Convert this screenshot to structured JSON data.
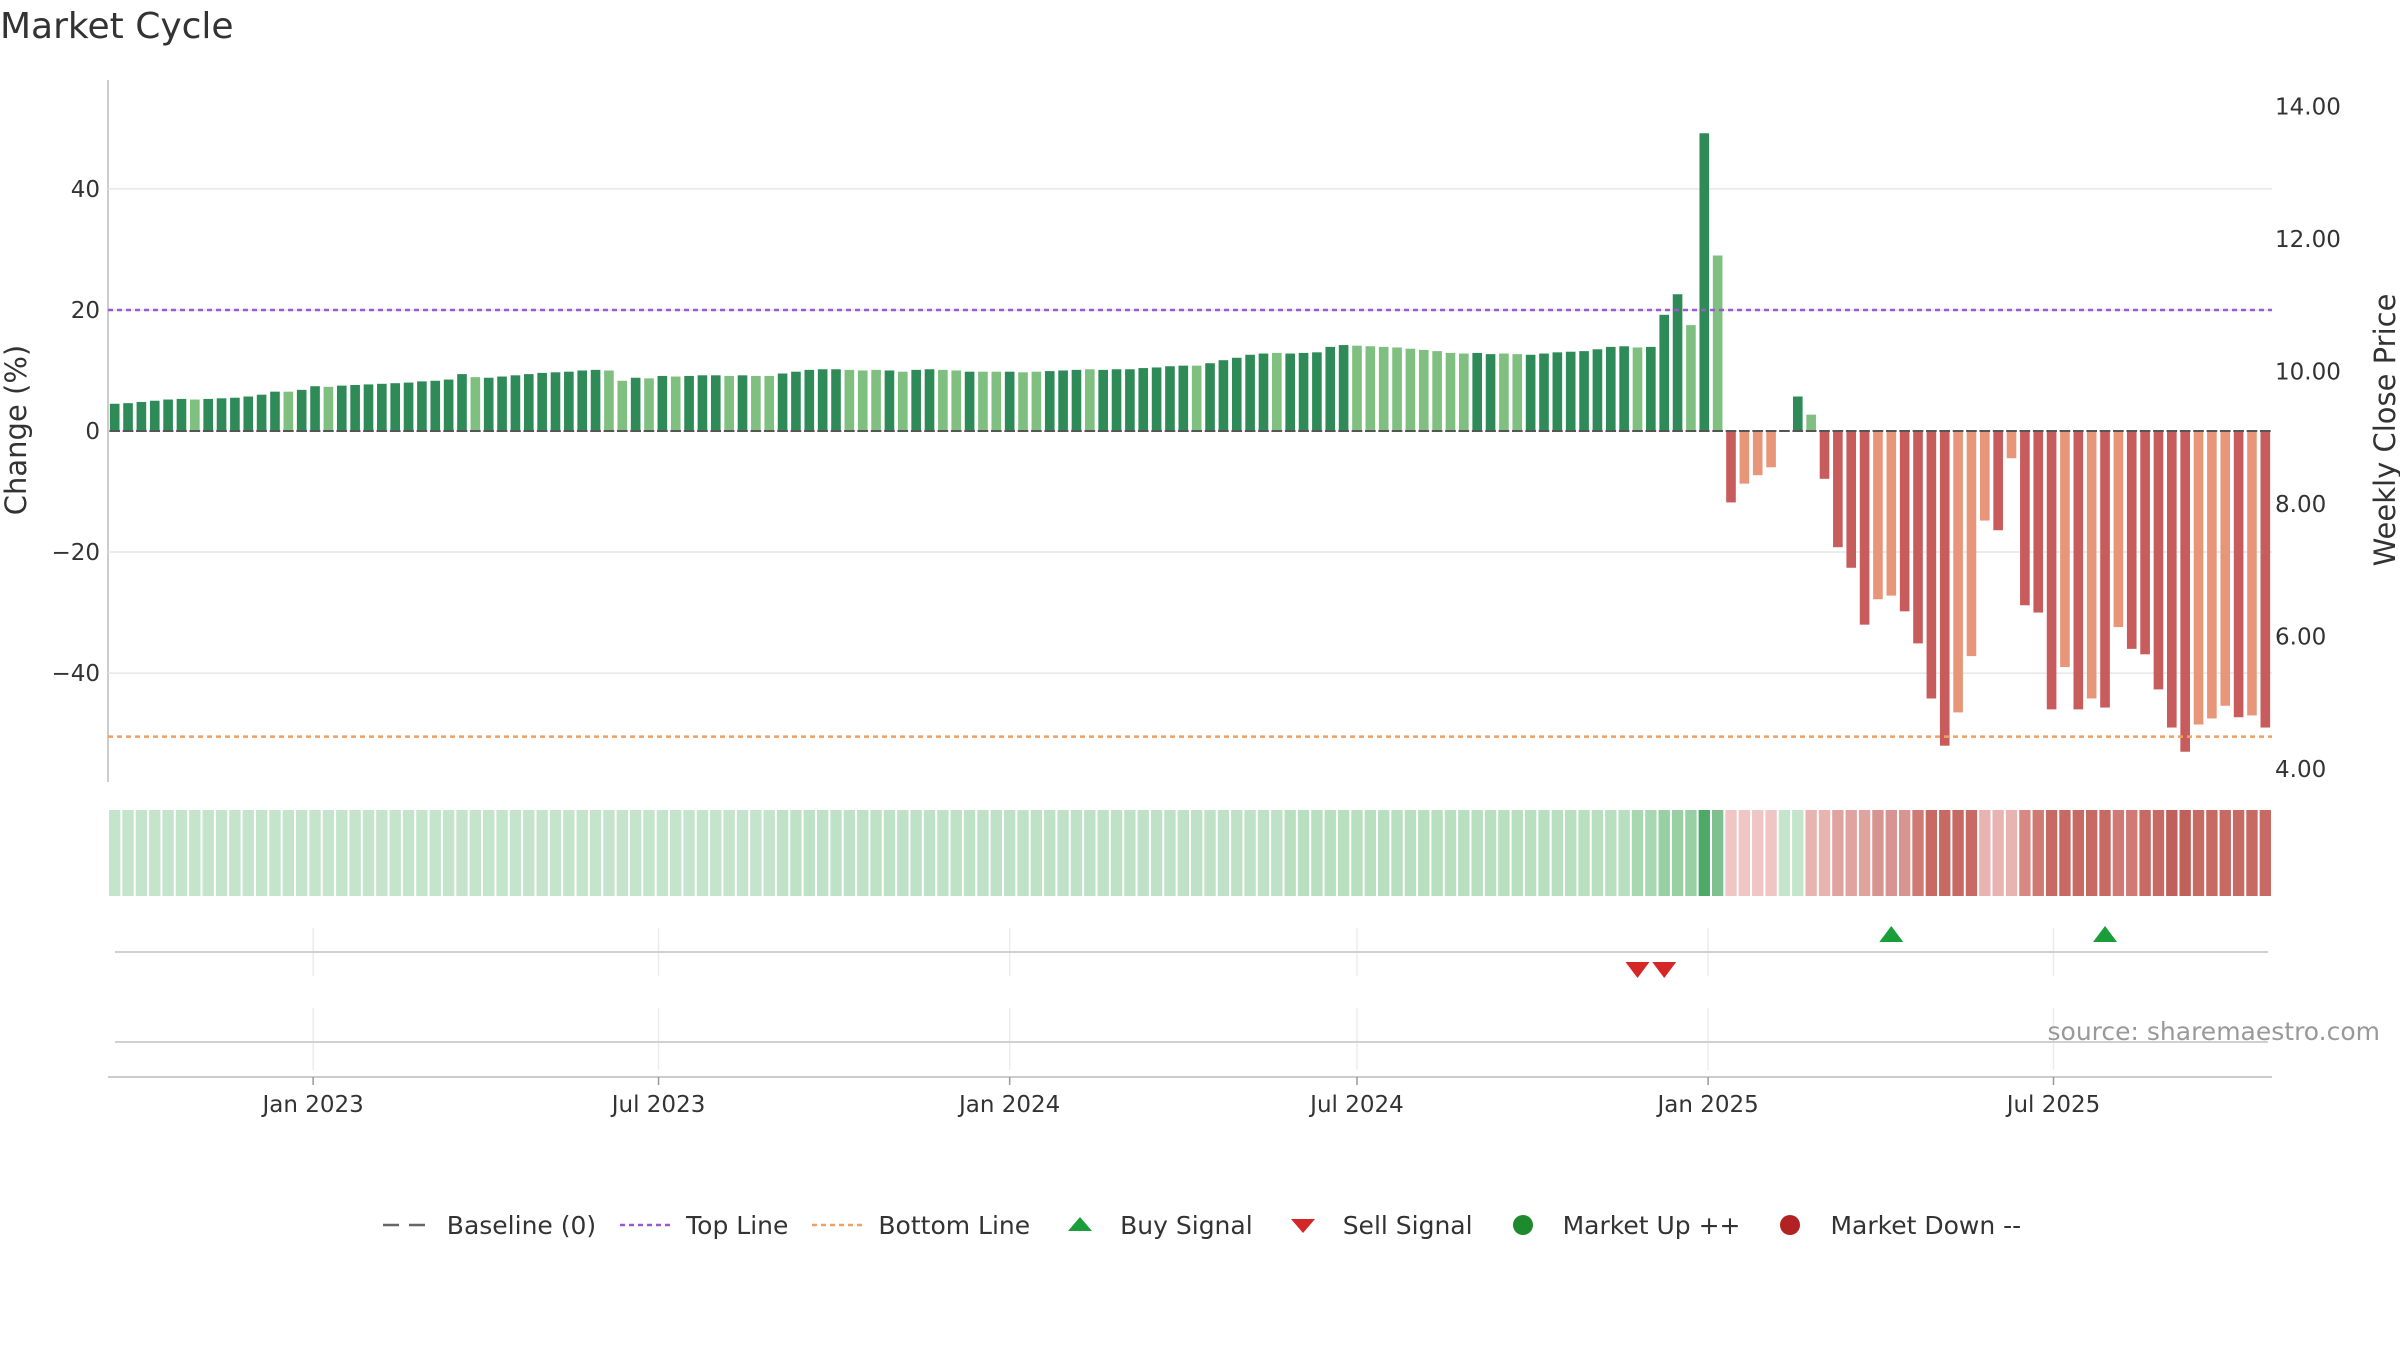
{
  "chart_data": {
    "type": "bar",
    "title": "Market Cycle",
    "ylabel_left": "Change (%)",
    "ylabel_right": "Weekly Close Price",
    "ylim_left": [
      -58,
      58
    ],
    "ylim_right": [
      3.8,
      14.4
    ],
    "yticks_left": [
      40,
      20,
      0,
      -20,
      -40
    ],
    "ytick_labels_left": [
      "40",
      "20",
      "0",
      "−20",
      "−40"
    ],
    "yticks_right": [
      "14.00",
      "12.00",
      "10.00",
      "8.00",
      "6.00",
      "4.00"
    ],
    "top_line": 20,
    "bottom_line": -50.5,
    "x_start": "2022-09-19",
    "week_days": 7,
    "xticks": [
      {
        "label": "Jan 2023",
        "date": "2023-01-01"
      },
      {
        "label": "Jul 2023",
        "date": "2023-07-01"
      },
      {
        "label": "Jan 2024",
        "date": "2024-01-01"
      },
      {
        "label": "Jul 2024",
        "date": "2024-07-01"
      },
      {
        "label": "Jan 2025",
        "date": "2025-01-01"
      },
      {
        "label": "Jul 2025",
        "date": "2025-07-01"
      }
    ],
    "values": [
      4.5,
      4.6,
      4.8,
      5.0,
      5.2,
      5.3,
      5.2,
      5.3,
      5.4,
      5.5,
      5.7,
      6.0,
      6.5,
      6.5,
      6.8,
      7.4,
      7.3,
      7.5,
      7.6,
      7.7,
      7.8,
      7.9,
      8.0,
      8.2,
      8.3,
      8.5,
      9.4,
      8.9,
      8.8,
      9.0,
      9.2,
      9.4,
      9.6,
      9.7,
      9.8,
      10.0,
      10.1,
      10.0,
      8.3,
      8.8,
      8.7,
      9.1,
      9.0,
      9.1,
      9.2,
      9.2,
      9.1,
      9.2,
      9.1,
      9.1,
      9.5,
      9.8,
      10.1,
      10.2,
      10.2,
      10.1,
      10.0,
      10.1,
      10.0,
      9.8,
      10.1,
      10.2,
      10.1,
      10.0,
      9.8,
      9.8,
      9.8,
      9.8,
      9.7,
      9.8,
      9.9,
      10.0,
      10.1,
      10.2,
      10.1,
      10.2,
      10.2,
      10.4,
      10.5,
      10.7,
      10.8,
      10.8,
      11.2,
      11.7,
      12.1,
      12.6,
      12.8,
      12.9,
      12.8,
      12.9,
      13.0,
      13.9,
      14.2,
      14.1,
      14.0,
      13.9,
      13.8,
      13.6,
      13.4,
      13.2,
      12.9,
      12.8,
      12.9,
      12.7,
      12.8,
      12.7,
      12.6,
      12.8,
      13.0,
      13.1,
      13.2,
      13.5,
      13.9,
      14.0,
      13.8,
      13.9,
      19.2,
      22.6,
      17.5,
      49.2,
      29.0,
      -11.8,
      -8.7,
      -7.3,
      -6.0,
      0,
      5.7,
      2.7,
      -7.9,
      -19.2,
      -22.6,
      -32.0,
      -27.8,
      -27.2,
      -29.8,
      -35.1,
      -44.2,
      -52.0,
      -46.5,
      -37.2,
      -14.8,
      -16.4,
      -4.5,
      -28.8,
      -30.0,
      -46.0,
      -39.0,
      -46.0,
      -44.2,
      -45.7,
      -32.4,
      -36.0,
      -36.9,
      -42.7,
      -49.0,
      -53.0,
      -48.5,
      -47.5,
      -45.4,
      -47.3,
      -47.0,
      -49.0
    ],
    "bar_colors": [
      "#2e8b57",
      "#2e8b57",
      "#2e8b57",
      "#2e8b57",
      "#2e8b57",
      "#2e8b57",
      "#7fbf7f",
      "#2e8b57",
      "#2e8b57",
      "#2e8b57",
      "#2e8b57",
      "#2e8b57",
      "#2e8b57",
      "#7fbf7f",
      "#2e8b57",
      "#2e8b57",
      "#7fbf7f",
      "#2e8b57",
      "#2e8b57",
      "#2e8b57",
      "#2e8b57",
      "#2e8b57",
      "#2e8b57",
      "#2e8b57",
      "#2e8b57",
      "#2e8b57",
      "#2e8b57",
      "#7fbf7f",
      "#2e8b57",
      "#2e8b57",
      "#2e8b57",
      "#2e8b57",
      "#2e8b57",
      "#2e8b57",
      "#2e8b57",
      "#2e8b57",
      "#2e8b57",
      "#7fbf7f",
      "#7fbf7f",
      "#2e8b57",
      "#7fbf7f",
      "#2e8b57",
      "#7fbf7f",
      "#2e8b57",
      "#2e8b57",
      "#2e8b57",
      "#7fbf7f",
      "#2e8b57",
      "#7fbf7f",
      "#7fbf7f",
      "#2e8b57",
      "#2e8b57",
      "#2e8b57",
      "#2e8b57",
      "#2e8b57",
      "#7fbf7f",
      "#7fbf7f",
      "#7fbf7f",
      "#2e8b57",
      "#7fbf7f",
      "#2e8b57",
      "#2e8b57",
      "#7fbf7f",
      "#7fbf7f",
      "#2e8b57",
      "#7fbf7f",
      "#7fbf7f",
      "#2e8b57",
      "#7fbf7f",
      "#7fbf7f",
      "#2e8b57",
      "#2e8b57",
      "#2e8b57",
      "#7fbf7f",
      "#2e8b57",
      "#2e8b57",
      "#2e8b57",
      "#2e8b57",
      "#2e8b57",
      "#2e8b57",
      "#2e8b57",
      "#7fbf7f",
      "#2e8b57",
      "#2e8b57",
      "#2e8b57",
      "#2e8b57",
      "#2e8b57",
      "#7fbf7f",
      "#2e8b57",
      "#2e8b57",
      "#2e8b57",
      "#2e8b57",
      "#2e8b57",
      "#7fbf7f",
      "#7fbf7f",
      "#7fbf7f",
      "#7fbf7f",
      "#7fbf7f",
      "#7fbf7f",
      "#7fbf7f",
      "#7fbf7f",
      "#7fbf7f",
      "#2e8b57",
      "#2e8b57",
      "#7fbf7f",
      "#7fbf7f",
      "#2e8b57",
      "#2e8b57",
      "#2e8b57",
      "#2e8b57",
      "#2e8b57",
      "#2e8b57",
      "#2e8b57",
      "#2e8b57",
      "#7fbf7f",
      "#2e8b57",
      "#2e8b57",
      "#2e8b57",
      "#7fbf7f",
      "#2e8b57",
      "#7fbf7f",
      "#c85c5c",
      "#e8967a",
      "#e8967a",
      "#e8967a",
      "#e8967a",
      "#2e8b57",
      "#7fbf7f",
      "#c85c5c",
      "#c85c5c",
      "#c85c5c",
      "#c85c5c",
      "#e8967a",
      "#e8967a",
      "#c85c5c",
      "#c85c5c",
      "#c85c5c",
      "#c85c5c",
      "#e8967a",
      "#e8967a",
      "#e8967a",
      "#c85c5c",
      "#e8967a",
      "#c85c5c",
      "#c85c5c",
      "#c85c5c",
      "#e8967a",
      "#c85c5c",
      "#e8967a",
      "#c85c5c",
      "#e8967a",
      "#c85c5c",
      "#c85c5c",
      "#c85c5c",
      "#c85c5c",
      "#c85c5c",
      "#e8967a",
      "#e8967a",
      "#e8967a",
      "#c85c5c",
      "#e8967a",
      "#c85c5c"
    ],
    "strip_colors": [
      "#c4e4cc",
      "#c4e4cc",
      "#c4e4cc",
      "#c4e4cc",
      "#c4e4cc",
      "#c4e4cc",
      "#c4e4cc",
      "#c4e4cc",
      "#c4e4cc",
      "#c4e4cc",
      "#c4e4cc",
      "#c4e4cc",
      "#c4e4cc",
      "#c4e4cc",
      "#c4e4cc",
      "#c4e4cc",
      "#c4e4cc",
      "#c4e4cc",
      "#c4e4cc",
      "#c4e4cc",
      "#c4e4cc",
      "#c4e4cc",
      "#c4e4cc",
      "#c4e4cc",
      "#c4e4cc",
      "#c4e4cc",
      "#c4e4cc",
      "#c4e4cc",
      "#c4e4cc",
      "#c4e4cc",
      "#c4e4cc",
      "#c4e4cc",
      "#c4e4cc",
      "#c4e4cc",
      "#c4e4cc",
      "#c4e4cc",
      "#c4e4cc",
      "#c4e4cc",
      "#c4e4cc",
      "#c4e4cc",
      "#c4e4cc",
      "#c4e4cc",
      "#c4e4cc",
      "#c4e4cc",
      "#c4e4cc",
      "#c4e4cc",
      "#c4e4cc",
      "#c4e4cc",
      "#c4e4cc",
      "#c4e4cc",
      "#bfe2c7",
      "#bfe2c7",
      "#bfe2c7",
      "#bfe2c7",
      "#bfe2c7",
      "#bfe2c7",
      "#bfe2c7",
      "#bfe2c7",
      "#bfe2c7",
      "#bfe2c7",
      "#bfe2c7",
      "#bfe2c7",
      "#bfe2c7",
      "#bfe2c7",
      "#bfe2c7",
      "#bfe2c7",
      "#bfe2c7",
      "#bfe2c7",
      "#bfe2c7",
      "#bfe2c7",
      "#bfe2c7",
      "#bfe2c7",
      "#bfe2c7",
      "#bfe2c7",
      "#bfe2c7",
      "#bfe2c7",
      "#bfe2c7",
      "#bfe2c7",
      "#bfe2c7",
      "#bfe2c7",
      "#bfe2c7",
      "#bfe2c7",
      "#bfe2c7",
      "#bfe2c7",
      "#bfe2c7",
      "#bfe2c7",
      "#bfe2c7",
      "#bfe2c7",
      "#b8dfc0",
      "#b8dfc0",
      "#b8dfc0",
      "#b8dfc0",
      "#b8dfc0",
      "#b8dfc0",
      "#b8dfc0",
      "#b8dfc0",
      "#b8dfc0",
      "#b8dfc0",
      "#b8dfc0",
      "#b8dfc0",
      "#b8dfc0",
      "#b8dfc0",
      "#b8dfc0",
      "#b8dfc0",
      "#b8dfc0",
      "#b8dfc0",
      "#b8dfc0",
      "#b8dfc0",
      "#b8dfc0",
      "#b8dfc0",
      "#b8dfc0",
      "#b8dfc0",
      "#b8dfc0",
      "#b8dfc0",
      "#a8d8b2",
      "#a8d8b2",
      "#98cfa3",
      "#98cfa3",
      "#98cfa3",
      "#4ea866",
      "#7fc08e",
      "#f0c6c4",
      "#f0c6c4",
      "#f0c6c4",
      "#f0c6c4",
      "#c4e4cc",
      "#c4e4cc",
      "#e8b4b2",
      "#e8b4b2",
      "#e0a4a0",
      "#e0a4a0",
      "#e0a4a0",
      "#d89490",
      "#d89490",
      "#d89490",
      "#cf7a74",
      "#c86a64",
      "#c86a64",
      "#c86a64",
      "#c86a64",
      "#e8b4b2",
      "#e8b4b2",
      "#e8b4b2",
      "#d88884",
      "#cf7a74",
      "#c86a64",
      "#c86a64",
      "#c86a64",
      "#c86a64",
      "#c86a64",
      "#cf7a74",
      "#cf7a74",
      "#c86a64",
      "#c86a64",
      "#c0605a",
      "#c0605a",
      "#c86a64",
      "#c86a64",
      "#c86a64",
      "#c86a64",
      "#c86a64",
      "#c86a64"
    ],
    "buy_signals": [
      "2025-04-07",
      "2025-07-28"
    ],
    "sell_signals": [
      "2024-11-25",
      "2024-12-09"
    ],
    "source": "source: sharemaestro.com",
    "legend": [
      {
        "key": "baseline",
        "label": "Baseline (0)",
        "color": "#666666"
      },
      {
        "key": "top",
        "label": "Top Line",
        "color": "#9b59d0"
      },
      {
        "key": "bottom",
        "label": "Bottom Line",
        "color": "#f0a060"
      },
      {
        "key": "buy",
        "label": "Buy Signal",
        "color": "#1a9e3a"
      },
      {
        "key": "sell",
        "label": "Sell Signal",
        "color": "#d62728"
      },
      {
        "key": "up",
        "label": "Market Up ++",
        "color": "#1e8a2e"
      },
      {
        "key": "down",
        "label": "Market Down --",
        "color": "#b22222"
      }
    ]
  }
}
